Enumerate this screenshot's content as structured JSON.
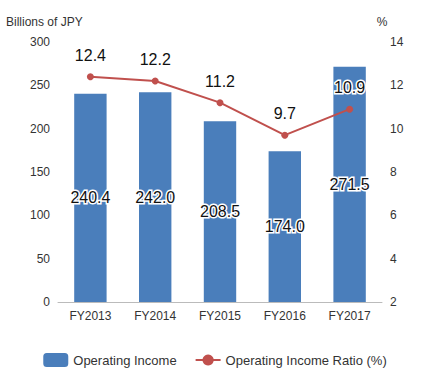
{
  "chart_data": {
    "type": "bar",
    "categories": [
      "FY2013",
      "FY2014",
      "FY2015",
      "FY2016",
      "FY2017"
    ],
    "y_label": "Billions of JPY",
    "y2_label": "%",
    "ylim": [
      0,
      300
    ],
    "yticks": [
      0,
      50,
      100,
      150,
      200,
      250,
      300
    ],
    "y2lim": [
      2,
      14
    ],
    "y2ticks": [
      2,
      4,
      6,
      8,
      10,
      12,
      14
    ],
    "grid": false,
    "legend": "bottom",
    "data_labels": true,
    "series": [
      {
        "name": "Operating Income",
        "type": "bar",
        "color": "#4a7ebb",
        "values": [
          240.4,
          242.0,
          208.5,
          174.0,
          271.5
        ],
        "value_labels": [
          "240.4",
          "242.0",
          "208.5",
          "174.0",
          "271.5"
        ]
      },
      {
        "name": "Operating Income Ratio (%)",
        "type": "line",
        "axis": "y2",
        "color": "#c0504d",
        "marker": "circle",
        "values": [
          12.4,
          12.2,
          11.2,
          9.7,
          10.9
        ]
      }
    ]
  }
}
